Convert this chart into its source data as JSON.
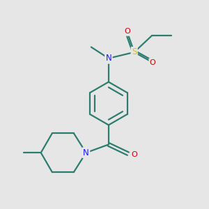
{
  "bg_color": "#e6e6e6",
  "bond_color": "#2d7d6e",
  "N_color": "#1a1aff",
  "O_color": "#cc0000",
  "S_color": "#cccc00",
  "lw": 1.6,
  "figsize": [
    3.0,
    3.0
  ],
  "dpi": 100,
  "xlim": [
    0,
    10
  ],
  "ylim": [
    0,
    10
  ]
}
